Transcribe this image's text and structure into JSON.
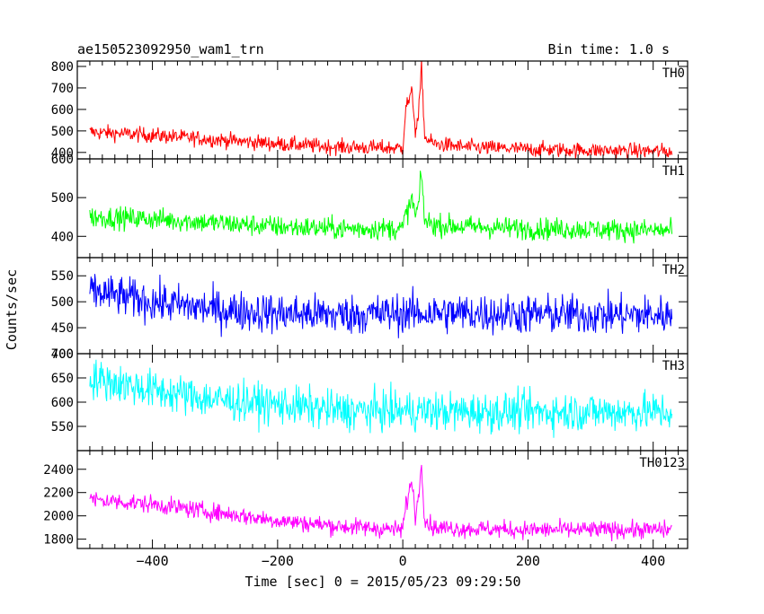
{
  "chart_data": {
    "type": "line",
    "title_left": "ae150523092950_wam1_trn",
    "title_right": "Bin time: 1.0 s",
    "xlabel": "Time [sec] 0 = 2015/05/23 09:29:50",
    "ylabel": "Counts/sec",
    "xlim": [
      -520,
      455
    ],
    "x_ticks": [
      -400,
      -200,
      0,
      200,
      400
    ],
    "x_ticklabels": [
      "−400",
      "−200",
      "0",
      "200",
      "400"
    ],
    "grid": false,
    "series": [
      {
        "name": "TH0",
        "color": "#ff0000",
        "ylim": [
          370,
          825
        ],
        "y_ticks": [
          400,
          500,
          600,
          700,
          800
        ],
        "y_ticklabels": [
          "400",
          "500",
          "600",
          "700",
          "800"
        ],
        "x": [
          -500,
          -400,
          -300,
          -200,
          -100,
          0,
          5,
          10,
          15,
          20,
          25,
          30,
          35,
          50,
          100,
          200,
          300,
          430
        ],
        "values": [
          495,
          480,
          460,
          440,
          425,
          420,
          620,
          640,
          680,
          500,
          560,
          800,
          470,
          440,
          425,
          415,
          410,
          405
        ],
        "noise": 35
      },
      {
        "name": "TH1",
        "color": "#00ff00",
        "ylim": [
          345,
          600
        ],
        "y_ticks": [
          400,
          500,
          600
        ],
        "y_ticklabels": [
          "400",
          "500",
          "600"
        ],
        "x": [
          -500,
          -400,
          -300,
          -200,
          -100,
          0,
          5,
          10,
          15,
          20,
          25,
          30,
          35,
          50,
          100,
          200,
          300,
          430
        ],
        "values": [
          450,
          445,
          435,
          425,
          420,
          420,
          460,
          470,
          500,
          450,
          480,
          560,
          440,
          430,
          425,
          420,
          418,
          415
        ],
        "noise": 28
      },
      {
        "name": "TH2",
        "color": "#0000ff",
        "ylim": [
          400,
          585
        ],
        "y_ticks": [
          400,
          450,
          500,
          550
        ],
        "y_ticklabels": [
          "400",
          "450",
          "500",
          "550"
        ],
        "x": [
          -500,
          -400,
          -300,
          -200,
          -100,
          0,
          100,
          200,
          300,
          430
        ],
        "values": [
          520,
          500,
          485,
          478,
          475,
          478,
          478,
          476,
          475,
          474
        ],
        "noise": 38
      },
      {
        "name": "TH3",
        "color": "#00ffff",
        "ylim": [
          500,
          700
        ],
        "y_ticks": [
          550,
          600,
          650,
          700
        ],
        "y_ticklabels": [
          "550",
          "600",
          "650",
          "700"
        ],
        "x": [
          -500,
          -400,
          -300,
          -200,
          -100,
          0,
          100,
          200,
          300,
          430
        ],
        "values": [
          650,
          625,
          605,
          595,
          582,
          582,
          580,
          580,
          580,
          580
        ],
        "noise": 40
      },
      {
        "name": "TH0123",
        "color": "#ff00ff",
        "ylim": [
          1720,
          2560
        ],
        "y_ticks": [
          1800,
          2000,
          2200,
          2400
        ],
        "y_ticklabels": [
          "1800",
          "2000",
          "2200",
          "2400"
        ],
        "x": [
          -500,
          -400,
          -300,
          -200,
          -100,
          0,
          5,
          10,
          15,
          20,
          25,
          30,
          35,
          50,
          100,
          200,
          300,
          430
        ],
        "values": [
          2140,
          2100,
          2030,
          1960,
          1910,
          1880,
          2100,
          2200,
          2300,
          2000,
          2150,
          2480,
          1960,
          1900,
          1890,
          1880,
          1880,
          1880
        ],
        "noise": 75
      }
    ]
  }
}
